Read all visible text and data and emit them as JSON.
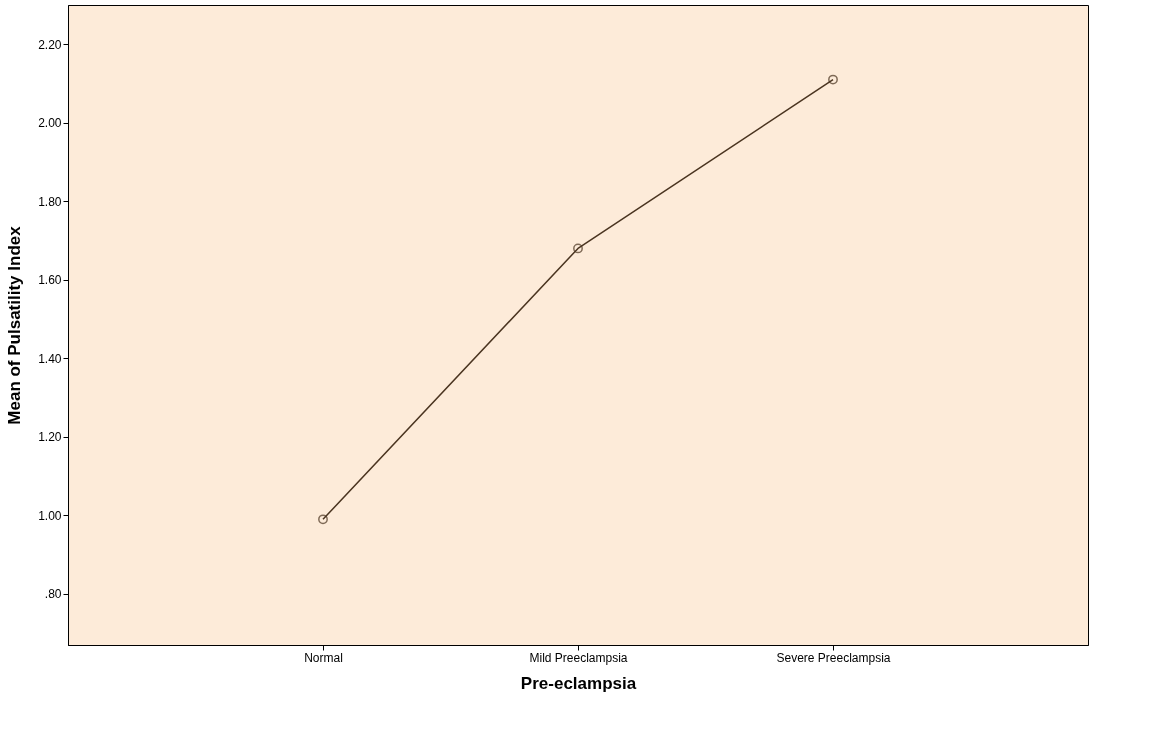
{
  "chart_data": {
    "type": "line",
    "xlabel": "Pre-eclampsia",
    "ylabel": "Mean of Pulsatility Index",
    "categories": [
      "Normal",
      "Mild Preeclampsia",
      "Severe Preeclampsia"
    ],
    "series": [
      {
        "color": "#4a3420",
        "values": [
          0.99,
          1.68,
          2.11
        ]
      }
    ],
    "ylim": [
      0.67,
      2.3
    ],
    "yticks": [
      {
        "value": 0.8,
        "label": ".80"
      },
      {
        "value": 1.0,
        "label": "1.00"
      },
      {
        "value": 1.2,
        "label": "1.20"
      },
      {
        "value": 1.4,
        "label": "1.40"
      },
      {
        "value": 1.6,
        "label": "1.60"
      },
      {
        "value": 1.8,
        "label": "1.80"
      },
      {
        "value": 2.0,
        "label": "2.00"
      },
      {
        "value": 2.2,
        "label": "2.20"
      }
    ],
    "grid": false,
    "marker": "circle",
    "line_style": "solid"
  }
}
